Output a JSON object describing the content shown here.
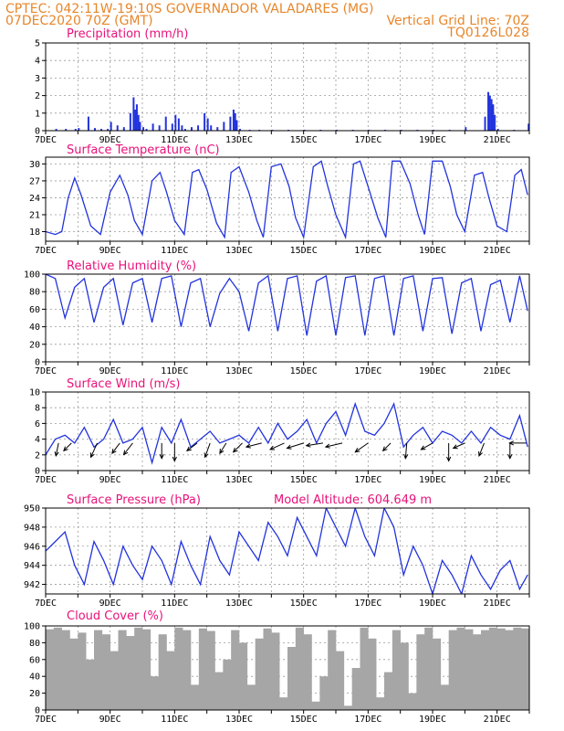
{
  "header": {
    "line1_left": "CPTEC:   042:11W-19:10S   GOVERNADOR VALADARES (MG)",
    "line2_left": "07DEC2020 70Z (GMT)",
    "line2_right": "Vertical Grid Line: 70Z",
    "line3_right": "TQ0126L028"
  },
  "colors": {
    "header": "#e8862a",
    "title": "#e8127a",
    "series": "#2233dd",
    "cloud": "#a6a6a6",
    "grid": "#9a9a9a"
  },
  "chart_data": [
    {
      "id": "precip",
      "type": "bar",
      "title": "Precipitation (mm/h)",
      "ylim": [
        0,
        5
      ],
      "yticks": [
        0,
        1,
        2,
        3,
        4,
        5
      ],
      "x_day_range": [
        7,
        22
      ],
      "xtick_labels": [
        "7DEC",
        "9DEC",
        "11DEC",
        "13DEC",
        "15DEC",
        "17DEC",
        "19DEC",
        "21DEC"
      ],
      "x": [
        7.3,
        7.6,
        7.9,
        8.0,
        8.3,
        8.5,
        8.7,
        8.9,
        9.0,
        9.2,
        9.4,
        9.6,
        9.7,
        9.75,
        9.8,
        9.85,
        9.9,
        10.0,
        10.1,
        10.3,
        10.5,
        10.7,
        10.9,
        11.0,
        11.1,
        11.2,
        11.3,
        11.5,
        11.7,
        11.9,
        12.0,
        12.1,
        12.3,
        12.5,
        12.7,
        12.8,
        12.85,
        12.9,
        13.0,
        13.3,
        13.6,
        14.0,
        14.5,
        15.0,
        15.5,
        16.0,
        16.5,
        17.0,
        17.5,
        18.0,
        18.5,
        19.0,
        19.5,
        20.0,
        20.6,
        20.7,
        20.75,
        20.8,
        20.85,
        20.9,
        21.0,
        21.5,
        21.95
      ],
      "values": [
        0.1,
        0.1,
        0.1,
        0.15,
        0.8,
        0.15,
        0.1,
        0.1,
        0.5,
        0.3,
        0.2,
        1.0,
        1.9,
        1.2,
        1.5,
        0.9,
        0.5,
        0.2,
        0.1,
        0.4,
        0.3,
        0.8,
        0.4,
        0.9,
        0.7,
        0.3,
        0.1,
        0.2,
        0.3,
        1.0,
        0.7,
        0.3,
        0.2,
        0.5,
        0.8,
        1.2,
        1.0,
        0.6,
        0.1,
        0.05,
        0.05,
        0.05,
        0.05,
        0.05,
        0.05,
        0.05,
        0.05,
        0.05,
        0.05,
        0.05,
        0.05,
        0.05,
        0.05,
        0.2,
        0.8,
        2.2,
        2.0,
        1.8,
        1.5,
        0.9,
        0.1,
        0.05,
        0.4
      ]
    },
    {
      "id": "temp",
      "type": "line",
      "title": "Surface Temperature (nC)",
      "ylim": [
        16.3,
        31.2
      ],
      "yticks": [
        18,
        21,
        24,
        27,
        30
      ],
      "x_day_range": [
        7,
        22
      ],
      "xtick_labels": [
        "7DEC",
        "9DEC",
        "11DEC",
        "13DEC",
        "15DEC",
        "17DEC",
        "19DEC",
        "21DEC"
      ],
      "x": [
        7.0,
        7.3,
        7.5,
        7.7,
        7.9,
        8.1,
        8.4,
        8.7,
        9.0,
        9.3,
        9.55,
        9.75,
        10.0,
        10.3,
        10.55,
        10.75,
        11.0,
        11.3,
        11.55,
        11.75,
        12.0,
        12.3,
        12.55,
        12.75,
        13.0,
        13.3,
        13.55,
        13.75,
        14.0,
        14.3,
        14.55,
        14.75,
        15.0,
        15.3,
        15.55,
        15.75,
        16.0,
        16.3,
        16.55,
        16.75,
        17.0,
        17.3,
        17.55,
        17.75,
        18.0,
        18.3,
        18.55,
        18.75,
        19.0,
        19.3,
        19.55,
        19.75,
        20.0,
        20.3,
        20.55,
        20.75,
        21.0,
        21.3,
        21.55,
        21.75,
        21.95
      ],
      "values": [
        18,
        17.5,
        18,
        24,
        27.5,
        24.5,
        19,
        17.5,
        25,
        28,
        24.5,
        20,
        17.5,
        27,
        28.5,
        25,
        20,
        17.5,
        28.5,
        29,
        25.5,
        19.5,
        17,
        28.5,
        29.5,
        25,
        20,
        17,
        29.5,
        30,
        26,
        20.5,
        17,
        29.5,
        30.5,
        26,
        21,
        17,
        30,
        30.5,
        26,
        20.5,
        17,
        30.5,
        30.5,
        26.5,
        21,
        17.5,
        30.5,
        30.5,
        26,
        21,
        18,
        28,
        28.5,
        24,
        19,
        18,
        28,
        29,
        24.5
      ]
    },
    {
      "id": "rh",
      "type": "line",
      "title": "Relative Humidity (%)",
      "ylim": [
        0,
        100
      ],
      "yticks": [
        0,
        20,
        40,
        60,
        80,
        100
      ],
      "x_day_range": [
        7,
        22
      ],
      "xtick_labels": [
        "7DEC",
        "9DEC",
        "11DEC",
        "13DEC",
        "15DEC",
        "17DEC",
        "19DEC",
        "21DEC"
      ],
      "x": [
        7.0,
        7.3,
        7.6,
        7.9,
        8.2,
        8.5,
        8.8,
        9.1,
        9.4,
        9.7,
        10.0,
        10.3,
        10.6,
        10.9,
        11.2,
        11.5,
        11.8,
        12.1,
        12.4,
        12.7,
        13.0,
        13.3,
        13.6,
        13.9,
        14.2,
        14.5,
        14.8,
        15.1,
        15.4,
        15.7,
        16.0,
        16.3,
        16.6,
        16.9,
        17.2,
        17.5,
        17.8,
        18.1,
        18.4,
        18.7,
        19.0,
        19.3,
        19.6,
        19.9,
        20.2,
        20.5,
        20.8,
        21.1,
        21.4,
        21.7,
        21.95
      ],
      "values": [
        100,
        95,
        50,
        85,
        95,
        45,
        85,
        95,
        42,
        90,
        95,
        45,
        95,
        98,
        40,
        90,
        95,
        40,
        78,
        95,
        80,
        35,
        90,
        98,
        35,
        95,
        98,
        30,
        92,
        98,
        30,
        96,
        98,
        30,
        95,
        98,
        30,
        95,
        98,
        35,
        95,
        96,
        32,
        90,
        95,
        35,
        88,
        93,
        45,
        98,
        58
      ]
    },
    {
      "id": "wind",
      "type": "line",
      "title": "Surface Wind (m/s)",
      "ylim": [
        0,
        10
      ],
      "yticks": [
        0,
        2,
        4,
        6,
        8,
        10
      ],
      "x_day_range": [
        7,
        22
      ],
      "xtick_labels": [
        "7DEC",
        "9DEC",
        "11DEC",
        "13DEC",
        "15DEC",
        "17DEC",
        "19DEC",
        "21DEC"
      ],
      "x": [
        7.0,
        7.3,
        7.6,
        7.9,
        8.2,
        8.5,
        8.8,
        9.1,
        9.4,
        9.7,
        10.0,
        10.3,
        10.6,
        10.9,
        11.2,
        11.5,
        11.8,
        12.1,
        12.4,
        12.7,
        13.0,
        13.3,
        13.6,
        13.9,
        14.2,
        14.5,
        14.8,
        15.1,
        15.4,
        15.7,
        16.0,
        16.3,
        16.6,
        16.9,
        17.2,
        17.5,
        17.8,
        18.1,
        18.4,
        18.7,
        19.0,
        19.3,
        19.6,
        19.9,
        20.2,
        20.5,
        20.8,
        21.1,
        21.4,
        21.7,
        21.95
      ],
      "values": [
        2,
        4,
        4.5,
        3.5,
        5.5,
        3,
        4,
        6.5,
        3.5,
        4,
        5.5,
        1,
        5.5,
        3.5,
        6.5,
        3,
        4,
        5,
        3.5,
        4,
        4.5,
        3.5,
        5.5,
        3.5,
        6,
        4,
        5,
        6.5,
        3.5,
        6,
        7.5,
        4.5,
        8.5,
        5,
        4.5,
        6,
        8.5,
        3,
        4.5,
        5.5,
        3.5,
        5,
        4.5,
        3.5,
        5,
        3.5,
        5.5,
        4.5,
        4,
        7,
        3
      ],
      "arrows": [
        {
          "day": 7.4,
          "u": -0.2,
          "v": -1.0
        },
        {
          "day": 7.8,
          "u": -0.6,
          "v": -0.6
        },
        {
          "day": 8.6,
          "u": -0.5,
          "v": -1.1
        },
        {
          "day": 9.3,
          "u": -0.6,
          "v": -0.8
        },
        {
          "day": 9.7,
          "u": -0.7,
          "v": -0.9
        },
        {
          "day": 10.6,
          "u": 0.0,
          "v": -1.2
        },
        {
          "day": 11.0,
          "u": 0.0,
          "v": -1.4
        },
        {
          "day": 11.7,
          "u": -0.8,
          "v": -0.6
        },
        {
          "day": 12.1,
          "u": -0.4,
          "v": -1.1
        },
        {
          "day": 12.6,
          "u": -0.5,
          "v": -0.8
        },
        {
          "day": 13.1,
          "u": -0.7,
          "v": -0.7
        },
        {
          "day": 13.7,
          "u": -1.2,
          "v": -0.3
        },
        {
          "day": 14.4,
          "u": -1.1,
          "v": -0.5
        },
        {
          "day": 15.0,
          "u": -1.3,
          "v": -0.4
        },
        {
          "day": 15.6,
          "u": -1.3,
          "v": -0.2
        },
        {
          "day": 16.2,
          "u": -1.3,
          "v": -0.3
        },
        {
          "day": 17.0,
          "u": -1.0,
          "v": -0.7
        },
        {
          "day": 17.7,
          "u": -0.6,
          "v": -0.6
        },
        {
          "day": 18.2,
          "u": -0.1,
          "v": -1.2
        },
        {
          "day": 19.0,
          "u": -0.9,
          "v": -0.5
        },
        {
          "day": 19.5,
          "u": 0.0,
          "v": -1.4
        },
        {
          "day": 20.0,
          "u": -0.9,
          "v": -0.4
        },
        {
          "day": 20.6,
          "u": -0.4,
          "v": -1.0
        },
        {
          "day": 21.4,
          "u": 0.0,
          "v": -1.2
        },
        {
          "day": 21.9,
          "u": -1.3,
          "v": 0.0
        }
      ]
    },
    {
      "id": "pres",
      "type": "line",
      "title": "Surface Pressure (hPa)",
      "annotation": "Model Altitude: 604.649 m",
      "ylim": [
        941,
        950
      ],
      "yticks": [
        942,
        944,
        946,
        948,
        950
      ],
      "x_day_range": [
        7,
        22
      ],
      "xtick_labels": [
        "7DEC",
        "9DEC",
        "11DEC",
        "13DEC",
        "15DEC",
        "17DEC",
        "19DEC",
        "21DEC"
      ],
      "x": [
        7.0,
        7.3,
        7.6,
        7.9,
        8.2,
        8.5,
        8.8,
        9.1,
        9.4,
        9.7,
        10.0,
        10.3,
        10.6,
        10.9,
        11.2,
        11.5,
        11.8,
        12.1,
        12.4,
        12.7,
        13.0,
        13.3,
        13.6,
        13.9,
        14.2,
        14.5,
        14.8,
        15.1,
        15.4,
        15.7,
        16.0,
        16.3,
        16.6,
        16.9,
        17.2,
        17.5,
        17.8,
        18.1,
        18.4,
        18.7,
        19.0,
        19.3,
        19.6,
        19.9,
        20.2,
        20.5,
        20.8,
        21.1,
        21.4,
        21.7,
        21.95
      ],
      "values": [
        945.5,
        946.5,
        947.5,
        944,
        942,
        946.5,
        944.5,
        942,
        946,
        944,
        942.5,
        946,
        944.5,
        942,
        946.5,
        944,
        942,
        947,
        944.5,
        943,
        947.5,
        946,
        944.5,
        948.5,
        947,
        945,
        949,
        947,
        945,
        950,
        948,
        946,
        950,
        947,
        945,
        950,
        948,
        943,
        946,
        944,
        941,
        944.5,
        943,
        941,
        945,
        943,
        941.5,
        943.5,
        944.5,
        941.5,
        943
      ]
    },
    {
      "id": "cloud",
      "type": "bar",
      "title": "Cloud Cover (%)",
      "ylim": [
        0,
        100
      ],
      "yticks": [
        0,
        20,
        40,
        60,
        80,
        100
      ],
      "x_day_range": [
        7,
        22
      ],
      "xtick_labels": [
        "7DEC",
        "9DEC",
        "11DEC",
        "13DEC",
        "15DEC",
        "17DEC",
        "19DEC",
        "21DEC"
      ],
      "x": [
        7.0,
        7.25,
        7.5,
        7.75,
        8.0,
        8.25,
        8.5,
        8.75,
        9.0,
        9.25,
        9.5,
        9.75,
        10.0,
        10.25,
        10.5,
        10.75,
        11.0,
        11.25,
        11.5,
        11.75,
        12.0,
        12.25,
        12.5,
        12.75,
        13.0,
        13.25,
        13.5,
        13.75,
        14.0,
        14.25,
        14.5,
        14.75,
        15.0,
        15.25,
        15.5,
        15.75,
        16.0,
        16.25,
        16.5,
        16.75,
        17.0,
        17.25,
        17.5,
        17.75,
        18.0,
        18.25,
        18.5,
        18.75,
        19.0,
        19.25,
        19.5,
        19.75,
        20.0,
        20.25,
        20.5,
        20.75,
        21.0,
        21.25,
        21.5,
        21.75
      ],
      "values": [
        96,
        98,
        95,
        85,
        92,
        60,
        95,
        90,
        70,
        95,
        88,
        98,
        96,
        40,
        90,
        70,
        98,
        95,
        30,
        97,
        94,
        45,
        60,
        95,
        80,
        30,
        85,
        97,
        92,
        15,
        75,
        98,
        90,
        10,
        40,
        95,
        70,
        5,
        50,
        98,
        85,
        15,
        45,
        95,
        80,
        20,
        90,
        98,
        85,
        30,
        95,
        98,
        96,
        90,
        95,
        98,
        97,
        95,
        98,
        97
      ]
    }
  ]
}
